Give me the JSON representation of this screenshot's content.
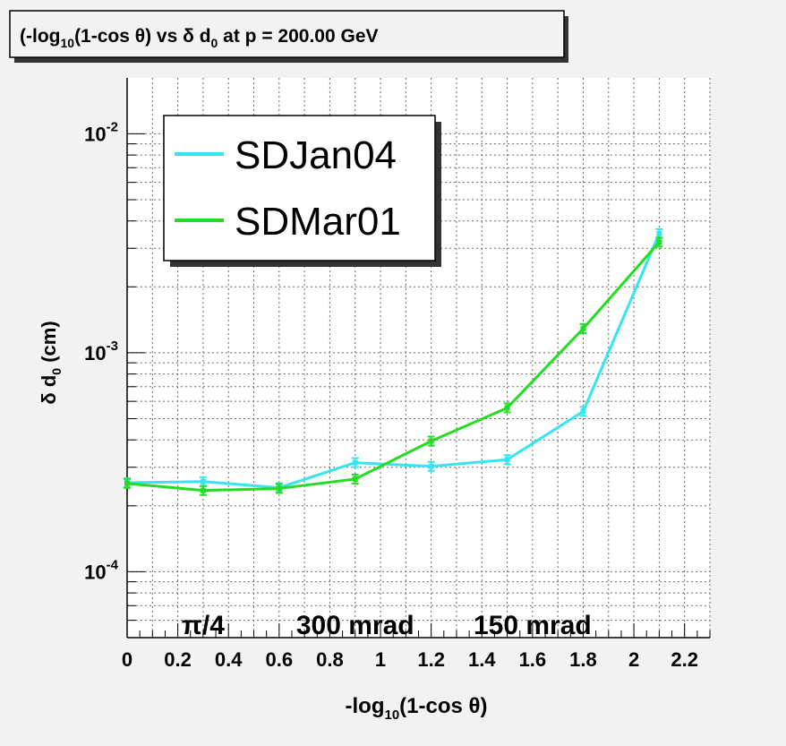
{
  "title": {
    "pre": "(-log",
    "sub1": "10",
    "mid1": "(1-cos θ) vs δ d",
    "sub2": "0",
    "post": " at p = 200.00 GeV"
  },
  "xlabel": {
    "pre": "-log",
    "sub": "10",
    "post": "(1-cos θ)"
  },
  "ylabel": {
    "pre": "δ d",
    "sub": "0",
    "post": " (cm)"
  },
  "annotations": [
    {
      "text": "π/4",
      "x": 0.3
    },
    {
      "text": "300 mrad",
      "x": 0.9
    },
    {
      "text": "150 mrad",
      "x": 1.6
    }
  ],
  "chart_data": {
    "type": "line",
    "xlim": [
      0,
      2.3
    ],
    "ylim": [
      5e-05,
      0.018
    ],
    "ylog": true,
    "grid": true,
    "legend_position": "top-left",
    "x_ticks": [
      0,
      0.2,
      0.4,
      0.6,
      0.8,
      1,
      1.2,
      1.4,
      1.6,
      1.8,
      2,
      2.2
    ],
    "x_tick_labels": [
      "0",
      "0.2",
      "0.4",
      "0.6",
      "0.8",
      "1",
      "1.2",
      "1.4",
      "1.6",
      "1.8",
      "2",
      "2.2"
    ],
    "y_major_ticks": [
      {
        "value": 0.0001,
        "base": "10",
        "exp": "-4"
      },
      {
        "value": 0.001,
        "base": "10",
        "exp": "-3"
      },
      {
        "value": 0.01,
        "base": "10",
        "exp": "-2"
      }
    ],
    "x": [
      0,
      0.3,
      0.6,
      0.9,
      1.2,
      1.5,
      1.8,
      2.1
    ],
    "series": [
      {
        "name": "SDJan04",
        "color": "#33e6f0",
        "values": [
          0.000255,
          0.000258,
          0.000242,
          0.000315,
          0.000303,
          0.000325,
          0.00054,
          0.0035
        ]
      },
      {
        "name": "SDMar01",
        "color": "#22dd22",
        "values": [
          0.000253,
          0.000235,
          0.00024,
          0.000265,
          0.000395,
          0.00056,
          0.00129,
          0.0032
        ]
      }
    ]
  }
}
